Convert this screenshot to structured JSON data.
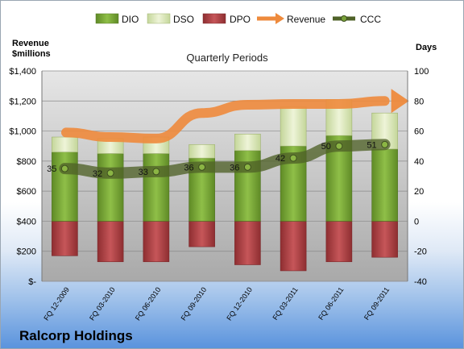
{
  "chart_data": {
    "type": "bar",
    "title": "",
    "subtitle": "Quarterly Periods",
    "company": "Ralcorp Holdings",
    "left_axis_title_line1": "Revenue",
    "left_axis_title_line2": "$millions",
    "right_axis_title": "Days",
    "left_axis": {
      "min": 0,
      "max": 1400,
      "step": 200,
      "tick_labels": [
        "$-",
        "$200",
        "$400",
        "$600",
        "$800",
        "$1,000",
        "$1,200",
        "$1,400"
      ]
    },
    "right_axis": {
      "min": -40,
      "max": 100,
      "step": 20,
      "tick_labels": [
        "-40",
        "-20",
        "0",
        "20",
        "40",
        "60",
        "80",
        "100"
      ]
    },
    "categories": [
      "FQ 12-2009",
      "FQ 03-2010",
      "FQ 06-2010",
      "FQ 09-2010",
      "FQ 12-2010",
      "FQ 03-2011",
      "FQ 06-2011",
      "FQ 09-2011"
    ],
    "legend": [
      "DIO",
      "DSO",
      "DPO",
      "Revenue",
      "CCC"
    ],
    "series": [
      {
        "name": "DIO",
        "axis": "right",
        "values": [
          46,
          45,
          45,
          42,
          47,
          50,
          57,
          48
        ]
      },
      {
        "name": "DSO",
        "axis": "right",
        "values": [
          10,
          10,
          11,
          9,
          11,
          26,
          24,
          24
        ]
      },
      {
        "name": "DPO",
        "axis": "right",
        "values": [
          -23,
          -27,
          -27,
          -17,
          -29,
          -33,
          -27,
          -24
        ]
      },
      {
        "name": "Revenue",
        "axis": "left",
        "values": [
          990,
          960,
          950,
          1120,
          1175,
          1180,
          1180,
          1200
        ]
      },
      {
        "name": "CCC",
        "axis": "right",
        "values": [
          35,
          32,
          33,
          36,
          36,
          42,
          50,
          51
        ]
      }
    ],
    "ccc_labels": [
      "35",
      "32",
      "33",
      "36",
      "36",
      "42",
      "50",
      "51"
    ],
    "colors": {
      "DIO": "#7aa33a",
      "DSO": "#d7e4b0",
      "DPO": "#b14447",
      "Revenue": "#ee8a3c",
      "CCC": "#4f6228",
      "plot_bg": "#bdbdbd"
    },
    "grid": true,
    "legend_position": "top"
  }
}
